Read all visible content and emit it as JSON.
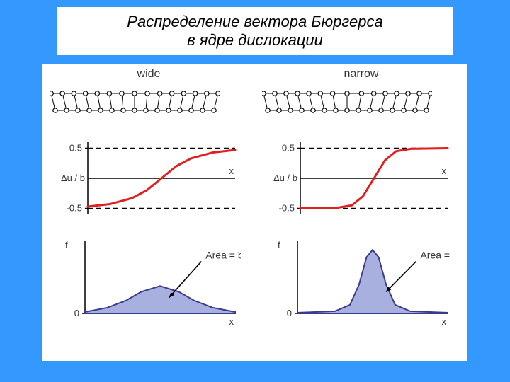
{
  "title": "Распределение вектора Бюргерса\nв ядре дислокации",
  "background_color": "#3399ff",
  "panel_bg": "#ffffff",
  "text_color": "#353535",
  "columns": [
    {
      "label": "wide",
      "lattice_spread": 1.8,
      "displacement": {
        "ylabel": "Δu / b",
        "xlabel": "x",
        "ylim": [
          -0.6,
          0.6
        ],
        "yticks": [
          -0.5,
          0.5
        ],
        "line_color": "#e02020",
        "line_width": 3,
        "dash_color": "#000000",
        "points": [
          [
            -1,
            -0.47
          ],
          [
            -0.7,
            -0.43
          ],
          [
            -0.4,
            -0.33
          ],
          [
            -0.2,
            -0.2
          ],
          [
            0,
            0
          ],
          [
            0.2,
            0.2
          ],
          [
            0.4,
            0.33
          ],
          [
            0.7,
            0.43
          ],
          [
            1,
            0.47
          ]
        ]
      },
      "density": {
        "ylabel": "f",
        "xlabel": "x",
        "area_label": "Area = b",
        "fill_color": "#a8b0e0",
        "line_color": "#3a3a8a",
        "line_width": 2,
        "ylim": [
          0,
          1
        ],
        "yticks": [
          0
        ],
        "arrow_from": [
          0.55,
          0.72
        ],
        "arrow_to": [
          0.12,
          0.22
        ],
        "points": [
          [
            -1,
            0.02
          ],
          [
            -0.7,
            0.08
          ],
          [
            -0.45,
            0.18
          ],
          [
            -0.25,
            0.3
          ],
          [
            0,
            0.38
          ],
          [
            0.25,
            0.3
          ],
          [
            0.45,
            0.18
          ],
          [
            0.7,
            0.08
          ],
          [
            1,
            0.02
          ]
        ]
      }
    },
    {
      "label": "narrow",
      "lattice_spread": 0.7,
      "displacement": {
        "ylabel": "Δu / b",
        "xlabel": "x",
        "ylim": [
          -0.6,
          0.6
        ],
        "yticks": [
          -0.5,
          0.5
        ],
        "line_color": "#e02020",
        "line_width": 3,
        "dash_color": "#000000",
        "points": [
          [
            -1,
            -0.5
          ],
          [
            -0.5,
            -0.49
          ],
          [
            -0.3,
            -0.45
          ],
          [
            -0.15,
            -0.3
          ],
          [
            0,
            0
          ],
          [
            0.15,
            0.3
          ],
          [
            0.3,
            0.45
          ],
          [
            0.5,
            0.49
          ],
          [
            1,
            0.5
          ]
        ]
      },
      "density": {
        "ylabel": "f",
        "xlabel": "x",
        "area_label": "Area = b",
        "fill_color": "#a8b0e0",
        "line_color": "#3a3a8a",
        "line_width": 2,
        "ylim": [
          0,
          1
        ],
        "yticks": [
          0
        ],
        "arrow_from": [
          0.58,
          0.72
        ],
        "arrow_to": [
          0.18,
          0.3
        ],
        "points": [
          [
            -1,
            0.01
          ],
          [
            -0.5,
            0.03
          ],
          [
            -0.3,
            0.12
          ],
          [
            -0.18,
            0.4
          ],
          [
            -0.08,
            0.78
          ],
          [
            0,
            0.88
          ],
          [
            0.08,
            0.78
          ],
          [
            0.18,
            0.4
          ],
          [
            0.3,
            0.12
          ],
          [
            0.5,
            0.03
          ],
          [
            1,
            0.01
          ]
        ]
      }
    }
  ]
}
